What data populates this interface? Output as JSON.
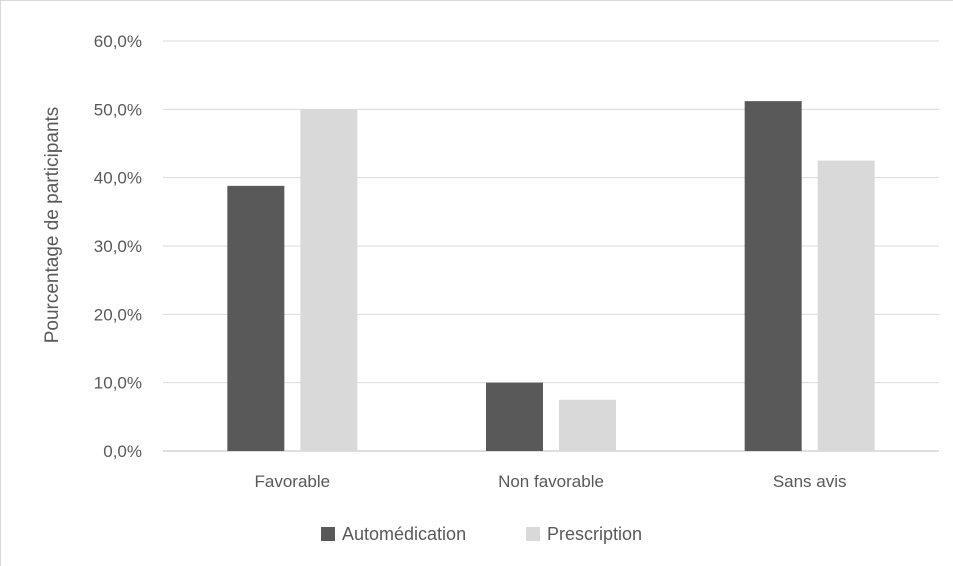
{
  "chart_data": {
    "type": "bar",
    "title": "",
    "xlabel": "",
    "ylabel": "Pourcentage de participants",
    "ylim": [
      0,
      60
    ],
    "yticks": [
      0,
      10,
      20,
      30,
      40,
      50,
      60
    ],
    "ytick_labels": [
      "0,0%",
      "10,0%",
      "20,0%",
      "30,0%",
      "40,0%",
      "50,0%",
      "60,0%"
    ],
    "categories": [
      "Favorable",
      "Non favorable",
      "Sans avis"
    ],
    "series": [
      {
        "name": "Automédication",
        "values": [
          38.8,
          10.0,
          51.2
        ],
        "color": "#595959"
      },
      {
        "name": "Prescription",
        "values": [
          50.0,
          7.5,
          42.5
        ],
        "color": "#d9d9d9"
      }
    ],
    "grid": true,
    "legend_position": "bottom"
  }
}
